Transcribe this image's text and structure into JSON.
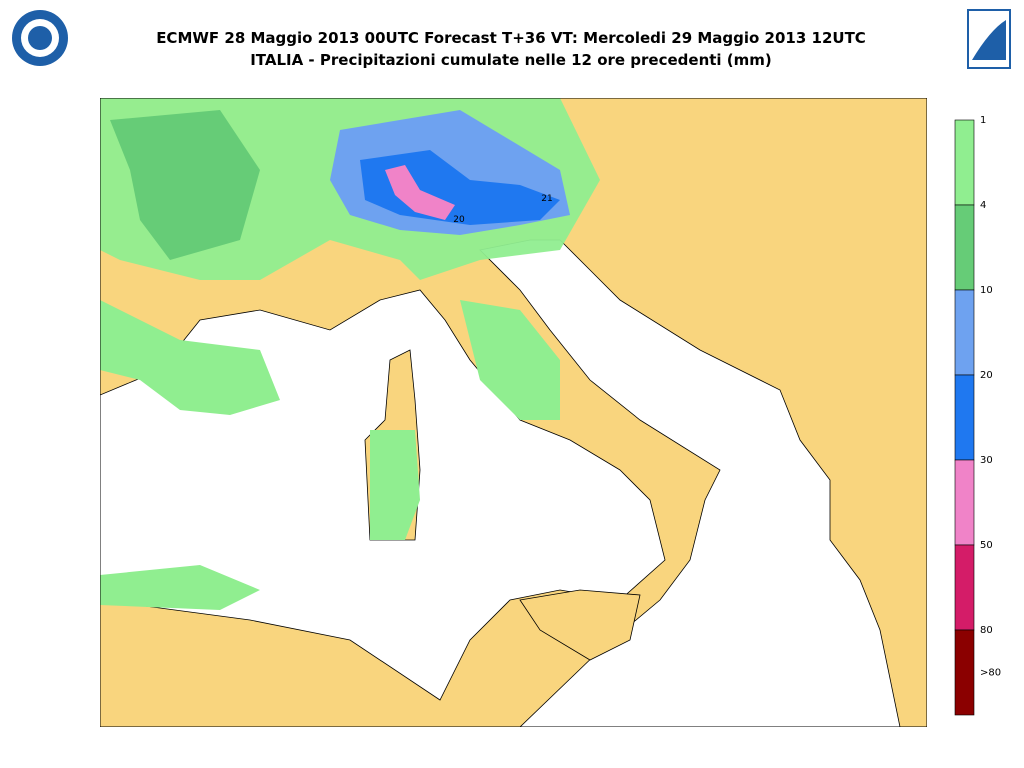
{
  "header": {
    "title": "ECMWF 28 Maggio 2013 00UTC Forecast T+36 VT: Mercoledi 29 Maggio 2013 12UTC",
    "subtitle": "ITALIA - Precipitazioni cumulate nelle 12 ore precedenti (mm)"
  },
  "legend": {
    "colors": [
      "#90ee90",
      "#66cc77",
      "#6ea2f0",
      "#1f78f0",
      "#f083c8",
      "#d41c68",
      "#8b0000"
    ],
    "labels": [
      "1",
      "4",
      "10",
      "20",
      "30",
      "50",
      "80",
      ">80"
    ]
  },
  "map_labels": [
    "21",
    "20"
  ]
}
